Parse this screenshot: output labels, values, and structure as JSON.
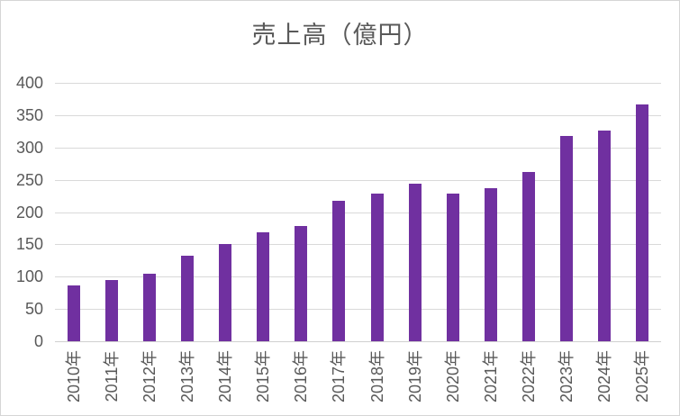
{
  "chart": {
    "colors": {
      "bar": "#7030A0",
      "gridline": "#D9D9D9",
      "axis_line": "#D0D0D0",
      "tick_text": "#595959",
      "title_text": "#595959",
      "background": "#FFFFFF",
      "border": "#D6D6D6"
    }
  },
  "chart_data": {
    "type": "bar",
    "title": "売上高（億円）",
    "categories": [
      "2010年",
      "2011年",
      "2012年",
      "2013年",
      "2014年",
      "2015年",
      "2016年",
      "2017年",
      "2018年",
      "2019年",
      "2020年",
      "2021年",
      "2022年",
      "2023年",
      "2024年",
      "2025年"
    ],
    "values": [
      86,
      95,
      105,
      132,
      151,
      168,
      179,
      218,
      228,
      244,
      229,
      237,
      262,
      318,
      326,
      367
    ],
    "series_name": "売上高",
    "xlabel": "",
    "ylabel": "",
    "ylim": [
      0,
      400
    ],
    "yticks": [
      0,
      50,
      100,
      150,
      200,
      250,
      300,
      350,
      400
    ],
    "grid": true,
    "legend": false,
    "x_tick_rotation": -90,
    "bar_color": "#7030A0"
  }
}
